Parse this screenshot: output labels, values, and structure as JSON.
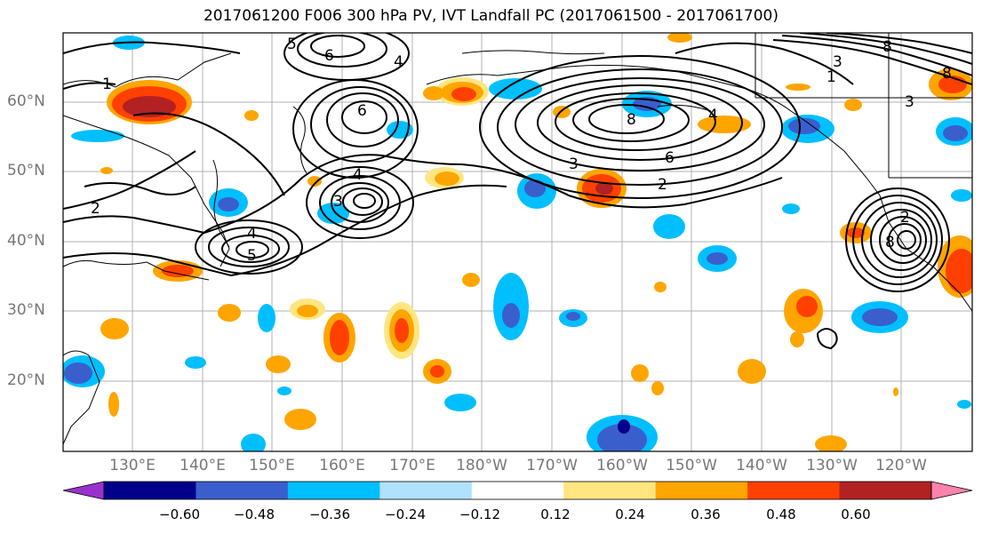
{
  "title": "2017061200 F006 300 hPa PV, IVT Landfall PC (2017061500 - 2017061700)",
  "lat_labels": [
    "60°N",
    "50°N",
    "40°N",
    "30°N",
    "20°N"
  ],
  "lon_labels": [
    "130°E",
    "140°E",
    "150°E",
    "160°E",
    "170°E",
    "180°W",
    "170°W",
    "160°W",
    "150°W",
    "140°W",
    "130°W",
    "120°W"
  ],
  "contour_labels": [
    "8",
    "6",
    "5",
    "4",
    "3",
    "2",
    "1",
    "8",
    "6",
    "4",
    "3",
    "2",
    "4",
    "3",
    "5",
    "4",
    "6",
    "2",
    "8",
    "3",
    "1",
    "8"
  ],
  "colorbar": {
    "ticks": [
      "−0.60",
      "−0.48",
      "−0.36",
      "−0.24",
      "−0.12",
      "0.12",
      "0.24",
      "0.36",
      "0.48",
      "0.60"
    ],
    "colors": [
      "#9932cc",
      "#00008b",
      "#3a5fcd",
      "#00bfff",
      "#b0e2ff",
      "#ffffff",
      "#ffe680",
      "#ffa500",
      "#ff4000",
      "#b22222",
      "#ff82ab"
    ]
  },
  "fill_colors": {
    "neg_light": "#00bfff",
    "neg_mid": "#3a5fcd",
    "neg_dark": "#00008b",
    "pos_light": "#ffe680",
    "pos_mid": "#ffa500",
    "pos_high": "#ff4000",
    "pos_max": "#b22222"
  }
}
